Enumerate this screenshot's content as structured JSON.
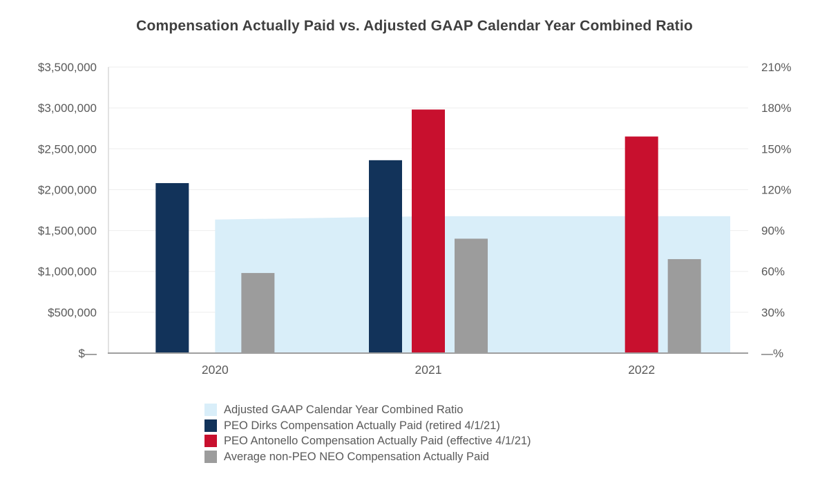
{
  "title": "Compensation Actually Paid vs. Adjusted GAAP Calendar Year Combined Ratio",
  "chart_data": {
    "type": "bar",
    "subtype": "combo-bar-area",
    "title": "Compensation Actually Paid vs. Adjusted GAAP Calendar Year Combined Ratio",
    "categories": [
      "2020",
      "2021",
      "2022"
    ],
    "series": [
      {
        "name": "Adjusted GAAP Calendar Year Combined Ratio",
        "type": "area",
        "axis": "right",
        "unit": "%",
        "color": "#d9eef9",
        "values": [
          98,
          100.5,
          100.5
        ]
      },
      {
        "name": "PEO Dirks Compensation Actually Paid (retired 4/1/21)",
        "type": "bar",
        "axis": "left",
        "unit": "$",
        "color": "#12335a",
        "values": [
          2080000,
          2360000,
          null
        ]
      },
      {
        "name": "PEO Antonello Compensation Actually Paid (effective 4/1/21)",
        "type": "bar",
        "axis": "left",
        "unit": "$",
        "color": "#c8102e",
        "values": [
          null,
          2980000,
          2650000
        ]
      },
      {
        "name": "Average non-PEO NEO Compensation Actually Paid",
        "type": "bar",
        "axis": "left",
        "unit": "$",
        "color": "#9c9c9c",
        "values": [
          980000,
          1400000,
          1150000
        ]
      }
    ],
    "left_axis": {
      "min": 0,
      "max": 3500000,
      "step": 500000,
      "tick_labels": [
        "$—",
        "$500,000",
        "$1,000,000",
        "$1,500,000",
        "$2,000,000",
        "$2,500,000",
        "$3,000,000",
        "$3,500,000"
      ]
    },
    "right_axis": {
      "min": 0,
      "max": 210,
      "step": 30,
      "tick_labels": [
        "—%",
        "30%",
        "60%",
        "90%",
        "120%",
        "150%",
        "180%",
        "210%"
      ]
    },
    "xlabel": "",
    "ylabel": "",
    "grid": true,
    "legend_position": "bottom",
    "area_extends_to_plot_right": true,
    "text_color": "#595959"
  }
}
